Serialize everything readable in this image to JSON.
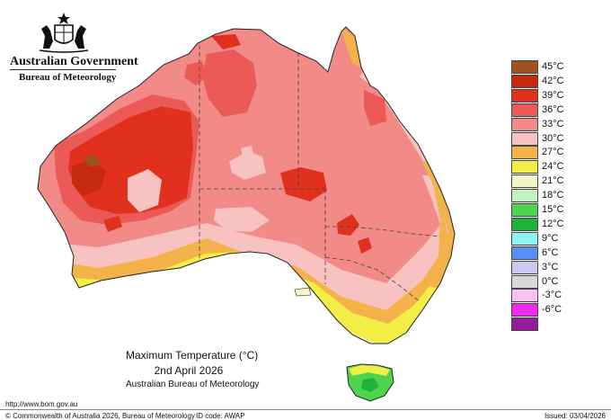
{
  "header": {
    "government": "Australian Government",
    "bureau": "Bureau of Meteorology"
  },
  "map": {
    "title": "Maximum Temperature (°C)",
    "date": "2nd April 2026",
    "agency": "Australian Bureau of Meteorology"
  },
  "legend": {
    "items": [
      {
        "label": "45°C",
        "color": "#a0521e"
      },
      {
        "label": "42°C",
        "color": "#c62a0e"
      },
      {
        "label": "39°C",
        "color": "#e2301e"
      },
      {
        "label": "36°C",
        "color": "#ec5a58"
      },
      {
        "label": "33°C",
        "color": "#f28a88"
      },
      {
        "label": "30°C",
        "color": "#f8c2c0"
      },
      {
        "label": "27°C",
        "color": "#f4b24a"
      },
      {
        "label": "24°C",
        "color": "#f3ee45"
      },
      {
        "label": "21°C",
        "color": "#f4f4c8"
      },
      {
        "label": "18°C",
        "color": "#c4f0c4"
      },
      {
        "label": "15°C",
        "color": "#4fd24e"
      },
      {
        "label": "12°C",
        "color": "#1fb23a"
      },
      {
        "label": "9°C",
        "color": "#8ef2f2"
      },
      {
        "label": "6°C",
        "color": "#5a8ef4"
      },
      {
        "label": "3°C",
        "color": "#c8c8f0"
      },
      {
        "label": "0°C",
        "color": "#d8d8d8"
      },
      {
        "label": "-3°C",
        "color": "#f8c4f0"
      },
      {
        "label": "-6°C",
        "color": "#f02cf0"
      },
      {
        "label": "",
        "color": "#9a1c9a"
      }
    ]
  },
  "footer": {
    "url": "http://www.bom.gov.au",
    "copyright": "© Commonwealth of Australia 2026, Bureau of Meteorology",
    "id_code": "ID code: AWAP",
    "issued": "Issued: 03/04/2026"
  }
}
